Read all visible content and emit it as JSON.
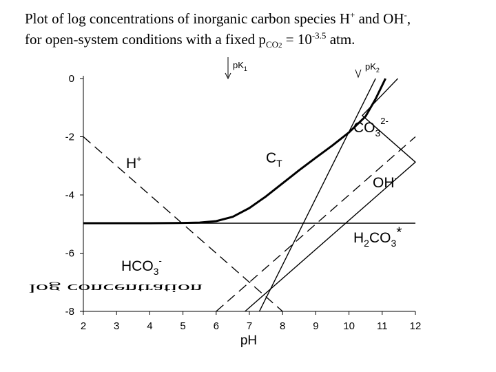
{
  "title": {
    "line1_a": "Plot of log concentrations of inorganic carbon species H",
    "line1_b": "+",
    "line1_c": " and OH",
    "line1_d": "-",
    "line1_e": ",",
    "line2_a": "for open-system conditions with a fixed p",
    "line2_b": "CO",
    "line2_c": "2",
    "line2_d": " = 10",
    "line2_e": "-3.5",
    "line2_f": " atm."
  },
  "chart_data": {
    "type": "line",
    "title": "",
    "xlabel": "pH",
    "ylabel": "",
    "xlim": [
      2,
      12
    ],
    "ylim": [
      -8,
      0
    ],
    "x_ticks": [
      "2",
      "3",
      "4",
      "5",
      "6",
      "7",
      "8",
      "9",
      "10",
      "11",
      "12"
    ],
    "y_ticks": [
      "0",
      "-2",
      "-4",
      "-6",
      "-8"
    ],
    "grid": false,
    "series": [
      {
        "name": "H+",
        "style": "dashed",
        "points": [
          [
            2,
            -2
          ],
          [
            8,
            -8
          ]
        ]
      },
      {
        "name": "OH-",
        "style": "dashed",
        "points": [
          [
            6,
            -8
          ],
          [
            12,
            -2
          ]
        ]
      },
      {
        "name": "H2CO3*",
        "style": "solid",
        "points": [
          [
            2,
            -4.97
          ],
          [
            12,
            -4.97
          ]
        ]
      },
      {
        "name": "HCO3-",
        "style": "solid",
        "points": [
          [
            6.87,
            -8
          ],
          [
            11.4,
            -3.47
          ],
          [
            11.47,
            -3.4
          ],
          [
            12,
            -2.87
          ],
          [
            10.4,
            -1.27
          ],
          [
            11.47,
            0
          ]
        ]
      },
      {
        "name": "CO3 2-",
        "style": "solid",
        "points": [
          [
            7.3,
            -8
          ],
          [
            10.8,
            0
          ]
        ]
      },
      {
        "name": "CT",
        "style": "bold",
        "points": [
          [
            2,
            -4.97
          ],
          [
            4,
            -4.97
          ],
          [
            5,
            -4.96
          ],
          [
            5.5,
            -4.95
          ],
          [
            6,
            -4.9
          ],
          [
            6.5,
            -4.75
          ],
          [
            7,
            -4.45
          ],
          [
            7.5,
            -4.05
          ],
          [
            8,
            -3.6
          ],
          [
            8.5,
            -3.15
          ],
          [
            9,
            -2.72
          ],
          [
            9.5,
            -2.3
          ],
          [
            10,
            -1.85
          ],
          [
            10.5,
            -1.3
          ],
          [
            10.8,
            -0.7
          ],
          [
            11.1,
            0
          ]
        ]
      }
    ],
    "labels": {
      "h_plus_a": "H",
      "h_plus_b": "+",
      "oh_a": "OH",
      "oh_b": "-",
      "h2co3_a": "H",
      "h2co3_b": "2",
      "h2co3_c": "CO",
      "h2co3_d": "3",
      "h2co3_e": "*",
      "hco3_a": "HCO",
      "hco3_b": "3",
      "hco3_c": "-",
      "co3_a": "CO",
      "co3_b": "3",
      "co3_c": "2-",
      "ct_a": "C",
      "ct_b": "T",
      "pk1_a": "pK",
      "pk1_b": "1",
      "pk2_a": "pK",
      "pk2_b": "2"
    },
    "garbled_ylabel": "log concentration"
  },
  "colors": {
    "line": "#000000",
    "background": "#ffffff"
  }
}
